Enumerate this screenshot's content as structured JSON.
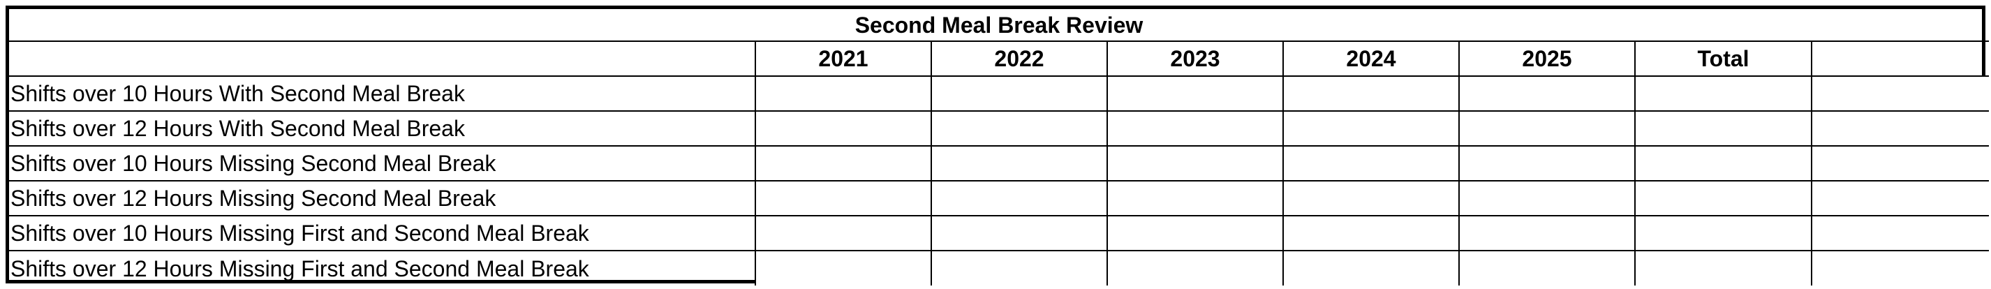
{
  "table": {
    "title": "Second Meal Break Review",
    "label_header": "",
    "columns": [
      "2021",
      "2022",
      "2023",
      "2024",
      "2025",
      "Total",
      ""
    ],
    "rows": [
      {
        "label": "Shifts over 10 Hours With Second Meal Break",
        "values": [
          "",
          "",
          "",
          "",
          "",
          "",
          ""
        ]
      },
      {
        "label": "Shifts over 12 Hours With Second Meal Break",
        "values": [
          "",
          "",
          "",
          "",
          "",
          "",
          ""
        ]
      },
      {
        "label": "Shifts over 10 Hours Missing Second Meal Break",
        "values": [
          "",
          "",
          "",
          "",
          "",
          "",
          ""
        ]
      },
      {
        "label": "Shifts over 12 Hours Missing Second Meal Break",
        "values": [
          "",
          "",
          "",
          "",
          "",
          "",
          ""
        ]
      },
      {
        "label": "Shifts over 10 Hours Missing First and Second Meal Break",
        "values": [
          "",
          "",
          "",
          "",
          "",
          "",
          ""
        ]
      },
      {
        "label": "Shifts over 12 Hours Missing First and Second Meal Break",
        "values": [
          "",
          "",
          "",
          "",
          "",
          "",
          ""
        ]
      }
    ]
  }
}
